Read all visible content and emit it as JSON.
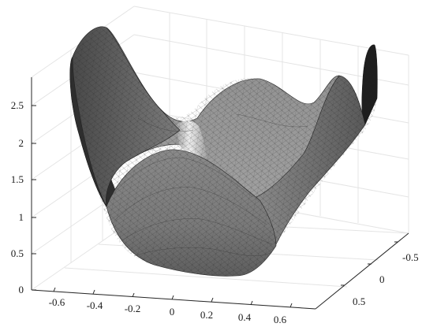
{
  "chart_data": {
    "type": "surface3d",
    "title": "",
    "xlabel": "",
    "ylabel": "",
    "zlabel": "",
    "grid": true,
    "colormap": "gray",
    "mesh": "triangulated",
    "shape": "bowl with four raised lobes",
    "x_ticks": [
      "-0.6",
      "-0.4",
      "-0.2",
      "0",
      "0.2",
      "0.4",
      "0.6"
    ],
    "y_ticks": [
      "-0.5",
      "0",
      "0.5"
    ],
    "z_ticks": [
      "0",
      "0.5",
      "1",
      "1.5",
      "2",
      "2.5"
    ],
    "xlim": [
      -0.7,
      0.7
    ],
    "ylim": [
      -0.7,
      0.7
    ],
    "zlim": [
      0,
      2.8
    ]
  }
}
